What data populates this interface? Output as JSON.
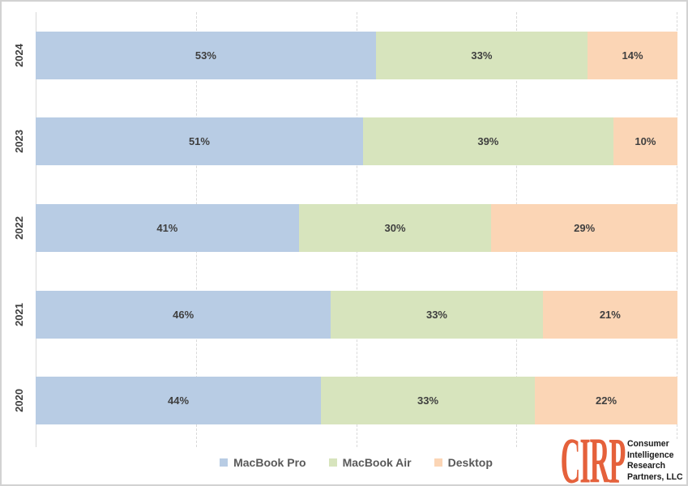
{
  "chart_data": {
    "type": "bar",
    "orientation": "horizontal_stacked",
    "title": "",
    "categories": [
      "2024",
      "2023",
      "2022",
      "2021",
      "2020"
    ],
    "series": [
      {
        "name": "MacBook Pro",
        "color": "#b8cce4",
        "values": [
          53,
          51,
          41,
          46,
          44
        ]
      },
      {
        "name": "MacBook Air",
        "color": "#d7e4bd",
        "values": [
          33,
          39,
          30,
          33,
          33
        ]
      },
      {
        "name": "Desktop",
        "color": "#fbd5b5",
        "values": [
          14,
          10,
          29,
          21,
          22
        ]
      }
    ],
    "value_suffix": "%",
    "xlim": [
      0,
      100
    ],
    "gridline_percents": [
      25,
      50,
      75,
      100
    ],
    "grid": true,
    "legend_position": "bottom",
    "label_color": "#3f3f3f"
  },
  "logo": {
    "name": "CIRP",
    "color": "#e5613b",
    "lines": [
      "Consumer",
      "Intelligence",
      "Research",
      "Partners, LLC"
    ]
  }
}
